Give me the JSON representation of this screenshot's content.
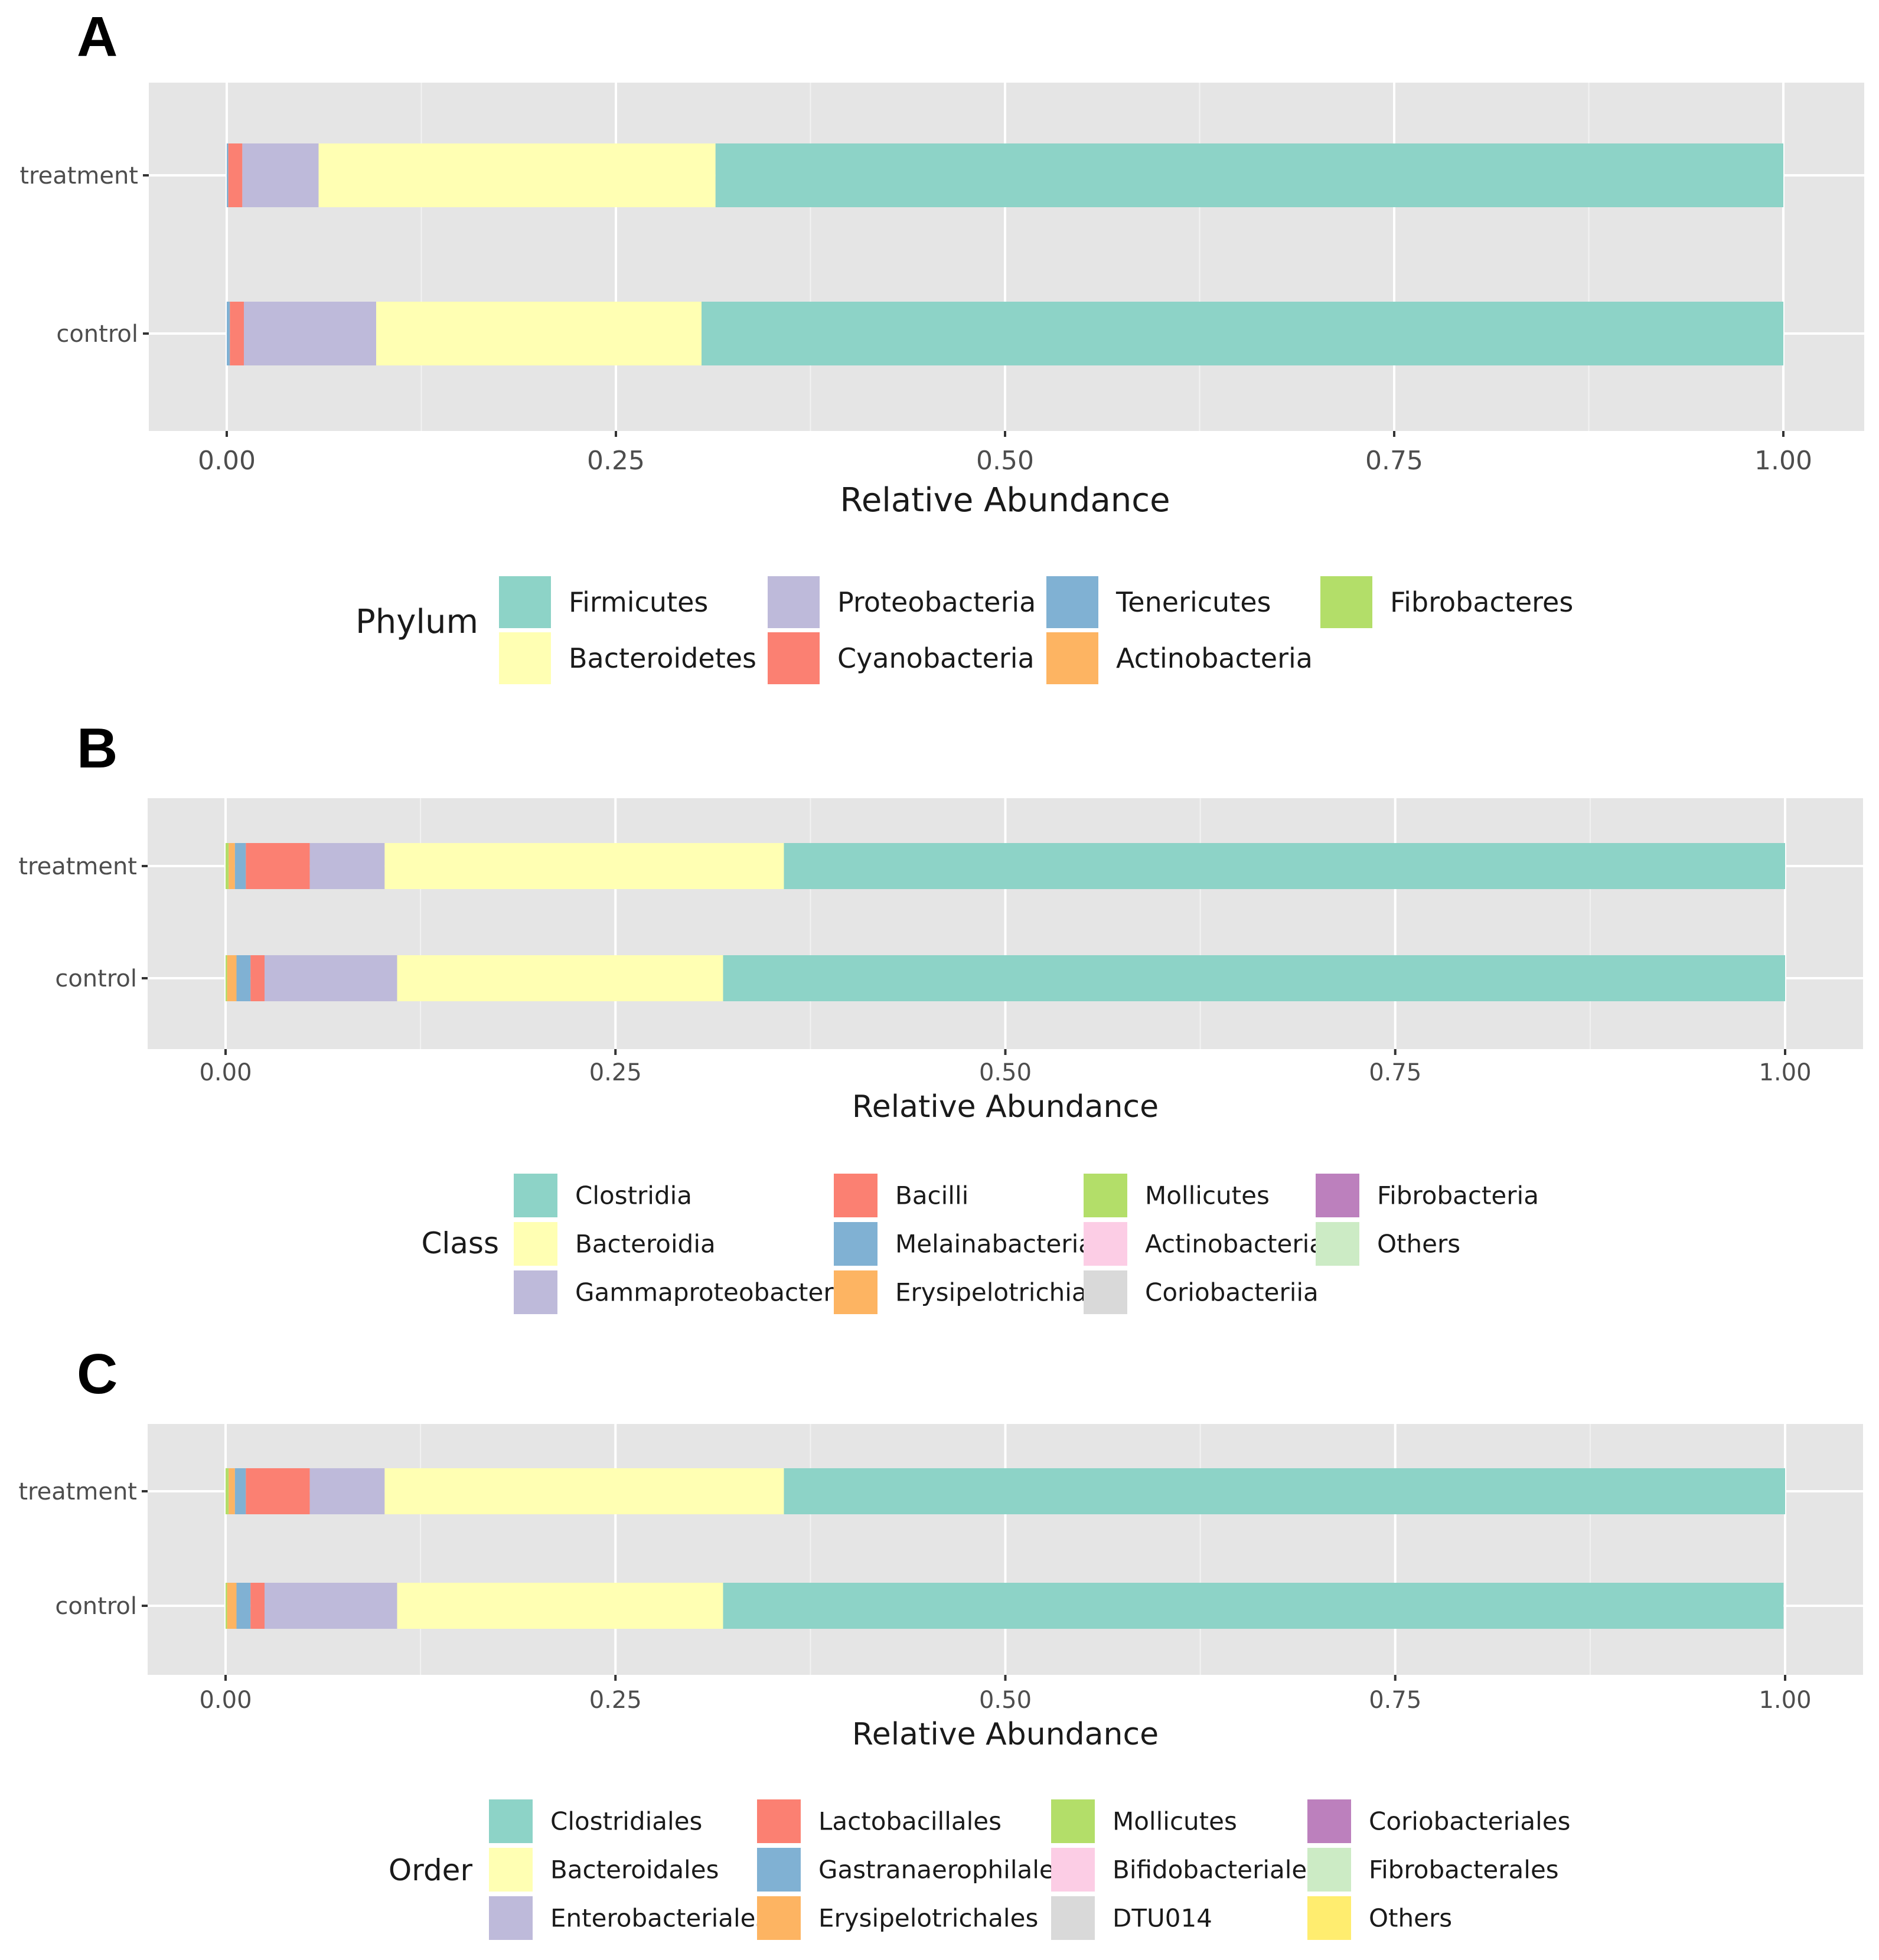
{
  "chart_data": [
    {
      "panel": "A",
      "type": "bar",
      "orientation": "horizontal",
      "stacked": true,
      "categories": [
        "treatment",
        "control"
      ],
      "xlabel": "Relative Abundance",
      "xlim": [
        0,
        1
      ],
      "xticks": [
        "0.00",
        "0.25",
        "0.50",
        "0.75",
        "1.00"
      ],
      "grid": true,
      "legend_title": "Phylum",
      "legend": [
        {
          "label": "Firmicutes",
          "color": "#8dd3c7"
        },
        {
          "label": "Bacteroidetes",
          "color": "#ffffb3"
        },
        {
          "label": "Proteobacteria",
          "color": "#bebada"
        },
        {
          "label": "Cyanobacteria",
          "color": "#fb8072"
        },
        {
          "label": "Tenericutes",
          "color": "#80b1d3"
        },
        {
          "label": "Actinobacteria",
          "color": "#fdb462"
        },
        {
          "label": "Fibrobacteres",
          "color": "#b3de69"
        }
      ],
      "series": [
        {
          "name": "Fibrobacteres",
          "color": "#b3de69",
          "values": [
            0.0,
            0.0
          ]
        },
        {
          "name": "Actinobacteria",
          "color": "#fdb462",
          "values": [
            0.0,
            0.0
          ]
        },
        {
          "name": "Tenericutes",
          "color": "#80b1d3",
          "values": [
            0.001,
            0.002
          ]
        },
        {
          "name": "Cyanobacteria",
          "color": "#fb8072",
          "values": [
            0.009,
            0.009
          ]
        },
        {
          "name": "Proteobacteria",
          "color": "#bebada",
          "values": [
            0.049,
            0.085
          ]
        },
        {
          "name": "Bacteroidetes",
          "color": "#ffffb3",
          "values": [
            0.255,
            0.209
          ]
        },
        {
          "name": "Firmicutes",
          "color": "#8dd3c7",
          "values": [
            0.686,
            0.695
          ]
        }
      ]
    },
    {
      "panel": "B",
      "type": "bar",
      "orientation": "horizontal",
      "stacked": true,
      "categories": [
        "treatment",
        "control"
      ],
      "xlabel": "Relative Abundance",
      "xlim": [
        0,
        1
      ],
      "xticks": [
        "0.00",
        "0.25",
        "0.50",
        "0.75",
        "1.00"
      ],
      "grid": true,
      "legend_title": "Class",
      "legend": [
        {
          "label": "Clostridia",
          "color": "#8dd3c7"
        },
        {
          "label": "Bacteroidia",
          "color": "#ffffb3"
        },
        {
          "label": "Gammaproteobacteria",
          "color": "#bebada"
        },
        {
          "label": "Bacilli",
          "color": "#fb8072"
        },
        {
          "label": "Melainabacteria",
          "color": "#80b1d3"
        },
        {
          "label": "Erysipelotrichia",
          "color": "#fdb462"
        },
        {
          "label": "Mollicutes",
          "color": "#b3de69"
        },
        {
          "label": "Actinobacteria",
          "color": "#fccde5"
        },
        {
          "label": "Coriobacteriia",
          "color": "#d9d9d9"
        },
        {
          "label": "Fibrobacteria",
          "color": "#bc80bd"
        },
        {
          "label": "Others",
          "color": "#ccebc5"
        }
      ],
      "series": [
        {
          "name": "Others",
          "color": "#ccebc5",
          "values": [
            0.0,
            0.0
          ]
        },
        {
          "name": "Fibrobacteria",
          "color": "#bc80bd",
          "values": [
            0.0,
            0.0
          ]
        },
        {
          "name": "Coriobacteriia",
          "color": "#d9d9d9",
          "values": [
            0.0,
            0.0
          ]
        },
        {
          "name": "Actinobacteria",
          "color": "#fccde5",
          "values": [
            0.0,
            0.0
          ]
        },
        {
          "name": "Mollicutes",
          "color": "#b3de69",
          "values": [
            0.002,
            0.001
          ]
        },
        {
          "name": "Erysipelotrichia",
          "color": "#fdb462",
          "values": [
            0.004,
            0.006
          ]
        },
        {
          "name": "Melainabacteria",
          "color": "#80b1d3",
          "values": [
            0.007,
            0.009
          ]
        },
        {
          "name": "Bacilli",
          "color": "#fb8072",
          "values": [
            0.041,
            0.009
          ]
        },
        {
          "name": "Gammaproteobacteria",
          "color": "#bebada",
          "values": [
            0.048,
            0.085
          ]
        },
        {
          "name": "Bacteroidia",
          "color": "#ffffb3",
          "values": [
            0.256,
            0.209
          ]
        },
        {
          "name": "Clostridia",
          "color": "#8dd3c7",
          "values": [
            0.642,
            0.681
          ]
        }
      ]
    },
    {
      "panel": "C",
      "type": "bar",
      "orientation": "horizontal",
      "stacked": true,
      "categories": [
        "treatment",
        "control"
      ],
      "xlabel": "Relative Abundance",
      "xlim": [
        0,
        1
      ],
      "xticks": [
        "0.00",
        "0.25",
        "0.50",
        "0.75",
        "1.00"
      ],
      "grid": true,
      "legend_title": "Order",
      "legend": [
        {
          "label": "Clostridiales",
          "color": "#8dd3c7"
        },
        {
          "label": "Bacteroidales",
          "color": "#ffffb3"
        },
        {
          "label": "Enterobacteriales",
          "color": "#bebada"
        },
        {
          "label": "Lactobacillales",
          "color": "#fb8072"
        },
        {
          "label": "Gastranaerophilales",
          "color": "#80b1d3"
        },
        {
          "label": "Erysipelotrichales",
          "color": "#fdb462"
        },
        {
          "label": "Mollicutes",
          "color": "#b3de69"
        },
        {
          "label": "Bifidobacteriales",
          "color": "#fccde5"
        },
        {
          "label": "DTU014",
          "color": "#d9d9d9"
        },
        {
          "label": "Coriobacteriales",
          "color": "#bc80bd"
        },
        {
          "label": "Fibrobacterales",
          "color": "#ccebc5"
        },
        {
          "label": "Others",
          "color": "#ffed6f"
        }
      ],
      "series": [
        {
          "name": "Others",
          "color": "#ffed6f",
          "values": [
            0.0,
            0.0
          ]
        },
        {
          "name": "Fibrobacterales",
          "color": "#ccebc5",
          "values": [
            0.0,
            0.0
          ]
        },
        {
          "name": "Coriobacteriales",
          "color": "#bc80bd",
          "values": [
            0.0,
            0.0
          ]
        },
        {
          "name": "DTU014",
          "color": "#d9d9d9",
          "values": [
            0.0,
            0.0
          ]
        },
        {
          "name": "Bifidobacteriales",
          "color": "#fccde5",
          "values": [
            0.0,
            0.0
          ]
        },
        {
          "name": "Mollicutes",
          "color": "#b3de69",
          "values": [
            0.002,
            0.001
          ]
        },
        {
          "name": "Erysipelotrichales",
          "color": "#fdb462",
          "values": [
            0.004,
            0.006
          ]
        },
        {
          "name": "Gastranaerophilales",
          "color": "#80b1d3",
          "values": [
            0.007,
            0.009
          ]
        },
        {
          "name": "Lactobacillales",
          "color": "#fb8072",
          "values": [
            0.041,
            0.009
          ]
        },
        {
          "name": "Enterobacteriales",
          "color": "#bebada",
          "values": [
            0.048,
            0.085
          ]
        },
        {
          "name": "Bacteroidales",
          "color": "#ffffb3",
          "values": [
            0.256,
            0.209
          ]
        },
        {
          "name": "Clostridiales",
          "color": "#8dd3c7",
          "values": [
            0.642,
            0.68
          ]
        }
      ]
    }
  ]
}
